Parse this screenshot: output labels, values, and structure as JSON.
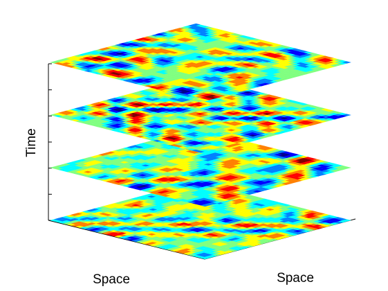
{
  "axes": {
    "vertical_label": "Time",
    "left_base_label": "Space",
    "right_base_label": "Space"
  },
  "slices": {
    "count": 4,
    "colormap": "jet",
    "colormap_stops": [
      "#00008f",
      "#0000ff",
      "#0080ff",
      "#00ffff",
      "#80ff80",
      "#ffff00",
      "#ff8000",
      "#ff0000",
      "#800000"
    ],
    "edge_color": "#000000",
    "background": "#ffffff"
  },
  "tick_counts": {
    "vertical": 7,
    "left_base": 3,
    "right_base": 3
  }
}
